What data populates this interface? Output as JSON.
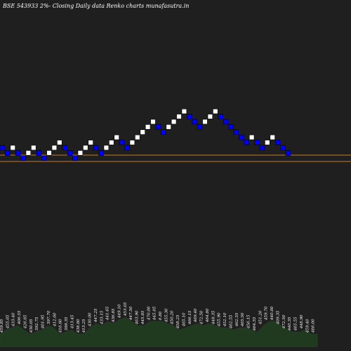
{
  "chart_data": {
    "type": "renko",
    "title": "BSE 543933 2%-  Closing Daily data  Renko  charts munafasutra.in",
    "colors": {
      "background": "#1f1f1f",
      "up_brick": "#ffffff",
      "down_brick": "#0000ff",
      "line": "#c87a28",
      "volume": "#1f3a1f",
      "text": "#ffffff"
    },
    "bricks": [
      "down",
      "down",
      "up",
      "down",
      "down",
      "up",
      "up",
      "down",
      "down",
      "up",
      "up",
      "up",
      "down",
      "down",
      "down",
      "up",
      "up",
      "up",
      "down",
      "down",
      "up",
      "up",
      "up",
      "down",
      "down",
      "up",
      "up",
      "up",
      "up",
      "up",
      "down",
      "down",
      "up",
      "up",
      "up",
      "up",
      "down",
      "down",
      "down",
      "up",
      "up",
      "up",
      "down",
      "down",
      "down",
      "down",
      "down",
      "down",
      "up",
      "down",
      "down",
      "up",
      "up",
      "down",
      "down",
      "down"
    ],
    "level_lines": [
      1,
      2
    ],
    "volume_labels": [
      "459.85",
      "455.05",
      "433.40",
      "406.55",
      "426.85",
      "430.05",
      "392.75",
      "401.95",
      "397.70",
      "412.60",
      "416.80",
      "399.35",
      "413.45",
      "438.80",
      "413.25",
      "430.00",
      "447.25",
      "433.15",
      "441.65",
      "436.85",
      "449.10",
      "453.05",
      "447.50",
      "463.90",
      "445.85",
      "470.00",
      "445.05",
      "6.80",
      "455.30",
      "450.20",
      "458.25",
      "465.10",
      "466.15",
      "469.40",
      "472.50",
      "464.80",
      "448.35",
      "455.90",
      "452.10",
      "462.55",
      "462.55",
      "465.50",
      "456.15",
      "464.55",
      "451.20",
      "459.70",
      "440.00",
      "409.35",
      "472.50",
      "440.35",
      "465.55",
      "448.90",
      "459.40",
      "466.00"
    ],
    "volume_levels": [
      0.3,
      0.4,
      0.45,
      0.5,
      0.4,
      0.3,
      0.35,
      0.4,
      0.5,
      0.45,
      0.3,
      0.35,
      0.4,
      0.3,
      0.3,
      0.45,
      0.55,
      0.5,
      0.6,
      0.55,
      0.65,
      0.7,
      0.6,
      0.5,
      0.5,
      0.6,
      0.6,
      0.6,
      0.55,
      0.5,
      0.4,
      0.45,
      0.5,
      0.55,
      0.5,
      0.55,
      0.5,
      0.45,
      0.45,
      0.4,
      0.45,
      0.45,
      0.4,
      0.35,
      0.5,
      0.6,
      0.6,
      0.5,
      0.4,
      0.35,
      0.35,
      0.4,
      0.3,
      0.3
    ]
  }
}
